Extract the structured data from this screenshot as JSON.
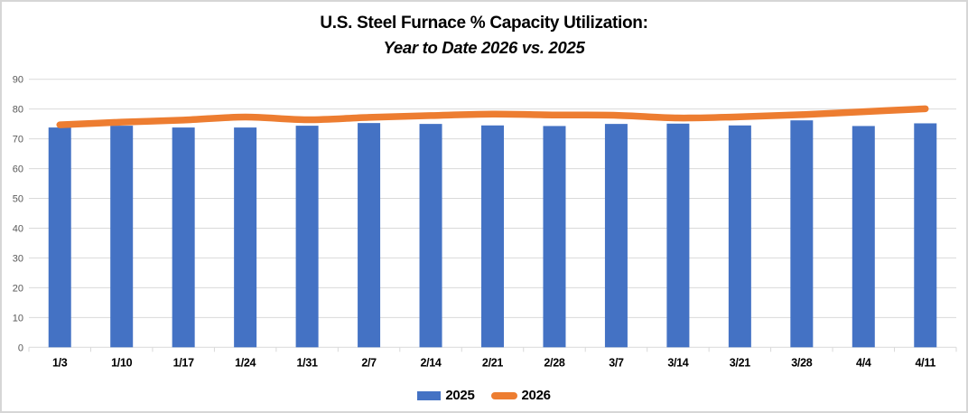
{
  "frame": {
    "background": "#ffffff",
    "border_color": "#d6d6d6"
  },
  "header": {
    "title": "U.S. Steel Furnace % Capacity Utilization:",
    "subtitle": "Year to Date 2026 vs. 2025"
  },
  "chart_data": {
    "type": "bar",
    "subtype": "bar-with-line-overlay",
    "title": "U.S. Steel Furnace % Capacity Utilization:",
    "subtitle": "Year to Date 2026 vs. 2025",
    "categories": [
      "1/3",
      "1/10",
      "1/17",
      "1/24",
      "1/31",
      "2/7",
      "2/14",
      "2/21",
      "2/28",
      "3/7",
      "3/14",
      "3/21",
      "3/28",
      "4/4",
      "4/11"
    ],
    "series": [
      {
        "name": "2025",
        "type": "bar",
        "color": "#4472C4",
        "values": [
          73.8,
          74.4,
          73.8,
          73.8,
          74.4,
          75.3,
          75.0,
          74.5,
          74.3,
          75.0,
          75.1,
          74.5,
          76.2,
          74.3,
          75.2
        ]
      },
      {
        "name": "2026",
        "type": "line",
        "color": "#ED7D31",
        "smooth": true,
        "values": [
          74.7,
          75.6,
          76.3,
          77.3,
          76.4,
          77.2,
          77.8,
          78.3,
          78.0,
          77.9,
          77.0,
          77.4,
          78.1,
          79.1,
          80.1
        ]
      }
    ],
    "xlabel": "",
    "ylabel": "",
    "ylim": [
      0,
      90
    ],
    "y_ticks": [
      0,
      10,
      20,
      30,
      40,
      50,
      60,
      70,
      80,
      90
    ],
    "grid": "horizontal",
    "gridline_color": "#d9d9d9",
    "tick_color": "#d9d9d9",
    "y_label_color": "#595959",
    "x_label_color": "#000000",
    "legend_position": "bottom"
  }
}
